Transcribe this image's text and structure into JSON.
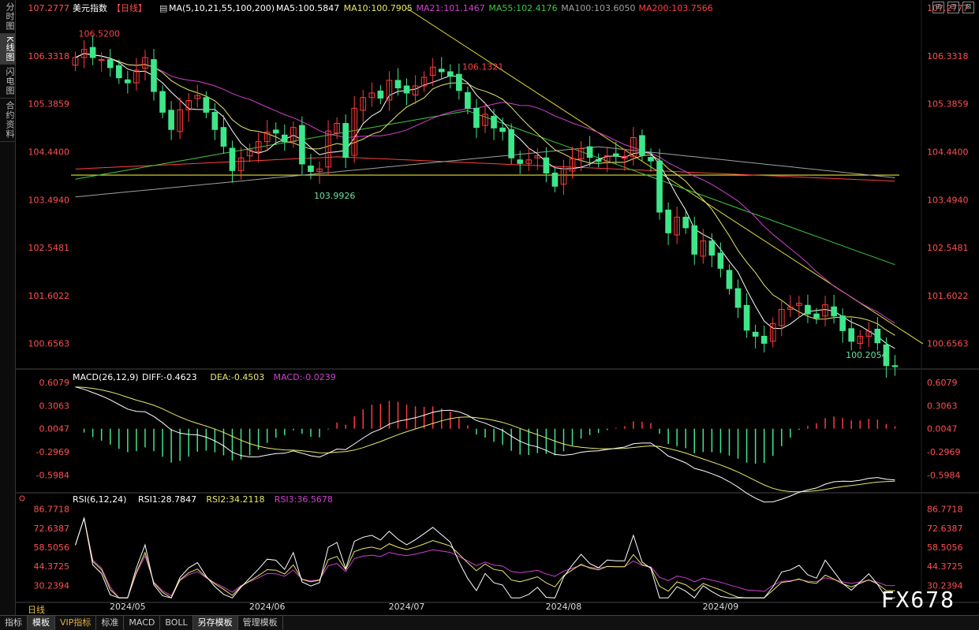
{
  "left_tabs": [
    "分时图",
    "K线图",
    "闪电图",
    "合约资料"
  ],
  "bottom_tabs": [
    "指标",
    "模板",
    "VIP指标",
    "标准",
    "MACD",
    "BOLL",
    "另存模板",
    "管理模板"
  ],
  "watermark": "FX678",
  "window_buttons": [
    "⊞",
    "⊟",
    "⊠"
  ],
  "colors": {
    "up": "#ff3b3b",
    "down": "#3ee68a",
    "ma5": "#ffffff",
    "ma10": "#e8e86a",
    "ma21": "#d040d0",
    "ma55": "#40c840",
    "ma100": "#a0a0a0",
    "ma200": "#ff4040",
    "trend": "#e8e030",
    "support": "#e8e030"
  },
  "chart_data": [
    {
      "type": "candlestick",
      "header": {
        "title": "美元指数",
        "period": "【日线】",
        "ma_label": "MA(5,10,21,55,100,200)",
        "ma_values": [
          {
            "label": "MA5:100.5847",
            "color": "#ffffff"
          },
          {
            "label": "MA10:100.7905",
            "color": "#e8e86a"
          },
          {
            "label": "MA21:101.1467",
            "color": "#d040d0"
          },
          {
            "label": "MA55:102.4176",
            "color": "#40c840"
          },
          {
            "label": "MA100:103.6050",
            "color": "#a0a0a0"
          },
          {
            "label": "MA200:103.7566",
            "color": "#ff4040"
          }
        ]
      },
      "ylim": [
        100.2,
        107.28
      ],
      "y_ticks": [
        "107.2777",
        "106.3318",
        "105.3859",
        "104.4400",
        "103.4940",
        "102.5481",
        "101.6022",
        "100.6563"
      ],
      "x_ticks": [
        "2024/05",
        "2024/06",
        "2024/07",
        "2024/08",
        "2024/09"
      ],
      "annotations": [
        {
          "text": "106.5200",
          "color": "#ff4040",
          "index": 0
        },
        {
          "text": "103.9926",
          "color": "#6de0a0",
          "index": 27
        },
        {
          "text": "106.1321",
          "color": "#ff4040",
          "index": 44
        },
        {
          "text": "100.2054",
          "color": "#6de0a0",
          "index": 88
        }
      ],
      "closes": [
        106.3,
        106.46,
        106.3,
        106.26,
        106.1,
        105.9,
        105.8,
        106.05,
        106.3,
        105.63,
        105.22,
        104.88,
        105.27,
        105.45,
        105.55,
        105.22,
        104.88,
        104.55,
        104.07,
        104.32,
        104.48,
        104.64,
        104.83,
        104.81,
        104.64,
        104.92,
        104.2,
        104.05,
        104.1,
        104.85,
        105.0,
        104.33,
        105.3,
        105.51,
        105.6,
        105.5,
        105.85,
        105.7,
        105.6,
        105.74,
        105.91,
        106.11,
        106.02,
        105.93,
        105.65,
        105.3,
        104.92,
        105.18,
        104.91,
        104.84,
        104.32,
        104.21,
        104.28,
        104.36,
        104.02,
        103.76,
        104.1,
        104.3,
        104.5,
        104.33,
        104.25,
        104.36,
        104.35,
        104.35,
        104.72,
        104.37,
        104.26,
        103.25,
        102.84,
        103.15,
        102.94,
        102.42,
        102.68,
        102.4,
        102.14,
        101.74,
        101.37,
        100.92,
        100.8,
        100.66,
        101.05,
        101.33,
        101.37,
        101.45,
        101.24,
        101.16,
        101.42,
        101.2,
        100.91,
        100.7,
        100.8,
        100.9,
        100.67,
        100.22,
        100.2
      ]
    },
    {
      "type": "macd",
      "header": {
        "label": "MACD(26,12,9)",
        "values": [
          {
            "label": "DIFF:-0.4623",
            "color": "#ffffff"
          },
          {
            "label": "DEA:-0.4503",
            "color": "#e8e86a"
          },
          {
            "label": "MACD:-0.0239",
            "color": "#d040d0"
          }
        ]
      },
      "ylim": [
        -0.78,
        0.66
      ],
      "y_ticks": [
        "0.6079",
        "0.3063",
        "0.0047",
        "-0.2969",
        "-0.5984"
      ]
    },
    {
      "type": "rsi",
      "header": {
        "label": "RSI(6,12,24)",
        "values": [
          {
            "label": "RSI1:28.7847",
            "color": "#ffffff"
          },
          {
            "label": "RSI2:34.2118",
            "color": "#e8e86a"
          },
          {
            "label": "RSI3:36.5678",
            "color": "#d040d0"
          }
        ]
      },
      "ylim": [
        20,
        90
      ],
      "y_ticks": [
        "86.7718",
        "72.6387",
        "58.5056",
        "44.3725",
        "30.2394"
      ]
    }
  ],
  "footer": {
    "period_label": "日线"
  }
}
